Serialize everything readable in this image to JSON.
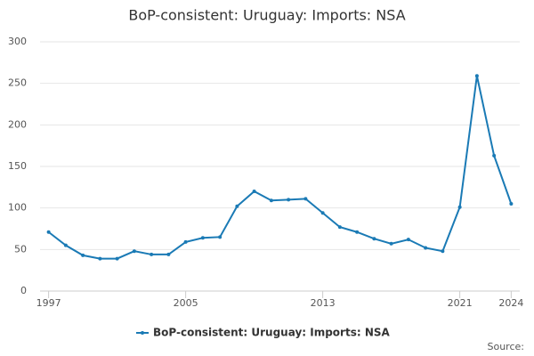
{
  "chart_data": {
    "type": "line",
    "title": "BoP-consistent: Uruguay: Imports: NSA",
    "x": [
      1997,
      1998,
      1999,
      2000,
      2001,
      2002,
      2003,
      2004,
      2005,
      2006,
      2007,
      2008,
      2009,
      2010,
      2011,
      2012,
      2013,
      2014,
      2015,
      2016,
      2017,
      2018,
      2019,
      2020,
      2021,
      2022,
      2023,
      2024
    ],
    "series": [
      {
        "name": "BoP-consistent: Uruguay: Imports: NSA",
        "color": "#1a7ab5",
        "values": [
          71,
          55,
          43,
          39,
          39,
          48,
          44,
          44,
          59,
          64,
          65,
          102,
          120,
          109,
          110,
          111,
          94,
          77,
          71,
          63,
          57,
          62,
          52,
          48,
          101,
          259,
          163,
          105
        ]
      }
    ],
    "xlim": [
      1996.5,
      2024.5
    ],
    "xticks": [
      1997,
      2005,
      2013,
      2021,
      2024
    ],
    "ylim": [
      0,
      300
    ],
    "yticks": [
      0,
      50,
      100,
      150,
      200,
      250,
      300
    ],
    "grid": true,
    "legend": "bottom",
    "source": "Source:"
  }
}
